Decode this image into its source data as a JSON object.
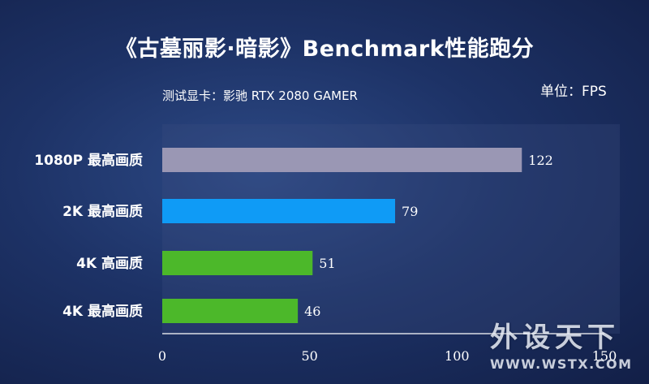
{
  "title": "《古墓丽影·暗影》Benchmark性能跑分",
  "subtitle": "测试显卡：影驰 RTX 2080 GAMER",
  "unit": "单位：FPS",
  "watermark": {
    "cn": "外设天下",
    "en": "WWW.WSTX.COM"
  },
  "colors": {
    "bar_1080p": "#9a97b4",
    "bar_2k": "#0f9bf6",
    "bar_4k": "#4cb82a"
  },
  "chart_data": {
    "type": "bar",
    "orientation": "horizontal",
    "categories": [
      "1080P 最高画质",
      "2K 最高画质",
      "4K 高画质",
      "4K 最高画质"
    ],
    "values": [
      122,
      79,
      51,
      46
    ],
    "bar_colors": [
      "#9a97b4",
      "#0f9bf6",
      "#4cb82a",
      "#4cb82a"
    ],
    "xlim": [
      0,
      150
    ],
    "xticks": [
      0,
      50,
      100,
      150
    ],
    "grid": false
  }
}
